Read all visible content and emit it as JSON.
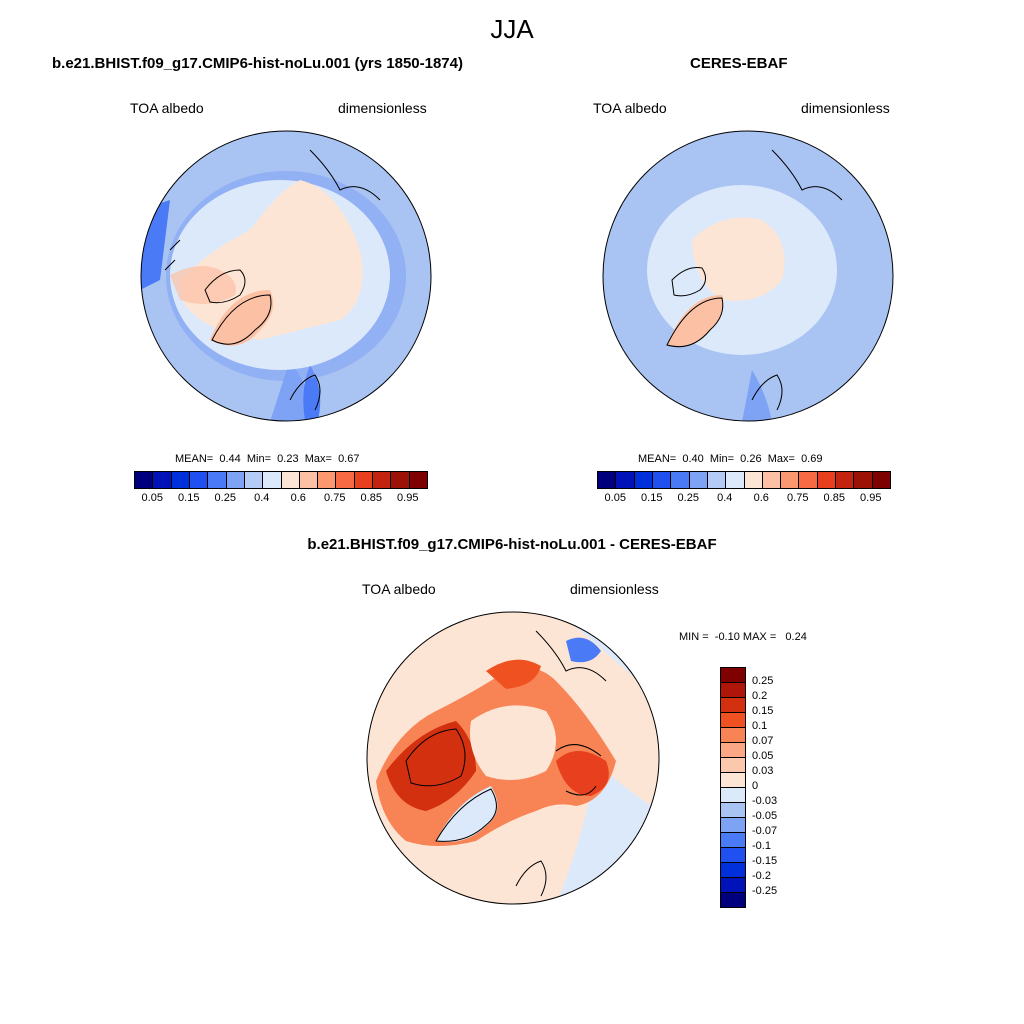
{
  "title": "JJA",
  "panels": {
    "model": {
      "title": "b.e21.BHIST.f09_g17.CMIP6-hist-noLu.001 (yrs 1850-1874)",
      "left_label": "TOA albedo",
      "right_label": "dimensionless",
      "stats": {
        "mean_label": "MEAN=",
        "mean": "0.44",
        "min_label": "Min=",
        "min": "0.23",
        "max_label": "Max=",
        "max": "0.67"
      }
    },
    "obs": {
      "title": "CERES-EBAF",
      "left_label": "TOA albedo",
      "right_label": "dimensionless",
      "stats": {
        "mean_label": "MEAN=",
        "mean": "0.40",
        "min_label": "Min=",
        "min": "0.26",
        "max_label": "Max=",
        "max": "0.69"
      }
    },
    "diff": {
      "title": "b.e21.BHIST.f09_g17.CMIP6-hist-noLu.001 - CERES-EBAF",
      "left_label": "TOA albedo",
      "right_label": "dimensionless",
      "stats": {
        "min_label": "MIN =",
        "min": "-0.10",
        "max_label": "MAX =",
        "max": "0.24"
      }
    }
  },
  "colorbar_abs": {
    "colors": [
      "#00007f",
      "#0012b8",
      "#0030dc",
      "#2050f0",
      "#4a7af5",
      "#7ea3f5",
      "#b4ccf5",
      "#dce9fb",
      "#fde5d6",
      "#fcc1a4",
      "#fc9870",
      "#f86a44",
      "#e8401e",
      "#c42310",
      "#9c1206",
      "#7f0000"
    ],
    "labels": [
      "0.05",
      "0.15",
      "0.25",
      "0.4",
      "0.6",
      "0.75",
      "0.85",
      "0.95"
    ]
  },
  "colorbar_diff": {
    "colors": [
      "#7f0000",
      "#b0150a",
      "#d2300f",
      "#ef5220",
      "#f88455",
      "#fba785",
      "#fcc8ad",
      "#fde5d6",
      "#dce9fb",
      "#a9c3f2",
      "#7ea3f5",
      "#4a7af5",
      "#2050f0",
      "#0030dc",
      "#0012b8",
      "#00007f"
    ],
    "labels": [
      "0.25",
      "0.2",
      "0.15",
      "0.1",
      "0.07",
      "0.05",
      "0.03",
      "0",
      "-0.03",
      "-0.05",
      "-0.07",
      "-0.1",
      "-0.15",
      "-0.2",
      "-0.25"
    ]
  }
}
